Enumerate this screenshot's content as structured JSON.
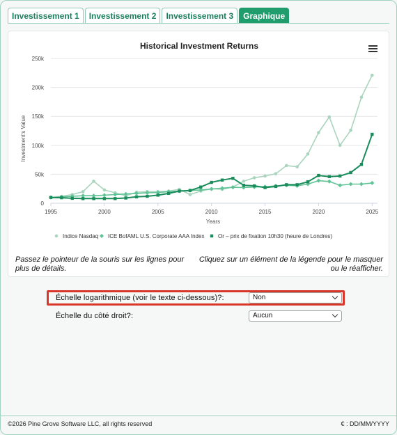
{
  "tabs": [
    {
      "label": "Investissement 1"
    },
    {
      "label": "Investissement 2"
    },
    {
      "label": "Investissement 3"
    },
    {
      "label": "Graphique"
    }
  ],
  "chart_data": {
    "type": "line",
    "title": "Historical Investment Returns",
    "xlabel": "Years",
    "ylabel": "Investment's Value",
    "x": [
      1995,
      1996,
      1997,
      1998,
      1999,
      2000,
      2001,
      2002,
      2003,
      2004,
      2005,
      2006,
      2007,
      2008,
      2009,
      2010,
      2011,
      2012,
      2013,
      2014,
      2015,
      2016,
      2017,
      2018,
      2019,
      2020,
      2021,
      2022,
      2023,
      2024,
      2025
    ],
    "xlim": [
      1995,
      2025.5
    ],
    "ylim": [
      0,
      250000
    ],
    "x_ticks": [
      1995,
      2000,
      2005,
      2010,
      2015,
      2020,
      2025
    ],
    "y_ticks": [
      0,
      50000,
      100000,
      150000,
      200000,
      250000
    ],
    "y_tick_labels": [
      "0",
      "50k",
      "100k",
      "150k",
      "200k",
      "250k"
    ],
    "grid": true,
    "legend_position": "bottom",
    "series": [
      {
        "name": "Indice Nasdaq",
        "color": "#a9d4bd",
        "marker": "circle",
        "values": [
          10000,
          12000,
          15000,
          20000,
          38000,
          23000,
          18000,
          13000,
          19000,
          20000,
          20000,
          21000,
          24000,
          15000,
          21000,
          25000,
          24000,
          28000,
          38000,
          44000,
          47000,
          51000,
          65000,
          63000,
          85000,
          122000,
          149000,
          100000,
          126000,
          183000,
          221000
        ]
      },
      {
        "name": "ICE BofAML U.S. Corporate AAA Index",
        "color": "#5fc396",
        "marker": "diamond",
        "values": [
          10000,
          11000,
          12000,
          13000,
          13000,
          14000,
          15000,
          16000,
          17000,
          18000,
          18500,
          20000,
          21000,
          22000,
          23000,
          24500,
          26000,
          27500,
          27000,
          28000,
          28500,
          30000,
          31000,
          30000,
          33000,
          39000,
          37500,
          31000,
          33000,
          33000,
          35000
        ]
      },
      {
        "name": "Or – prix de fixation 10h30 (heure de Londres)",
        "color": "#1a8c5b",
        "marker": "square",
        "values": [
          10000,
          9500,
          8500,
          8000,
          8000,
          8000,
          8000,
          9000,
          11000,
          12000,
          14000,
          17000,
          21000,
          22000,
          28000,
          36000,
          40000,
          43000,
          31000,
          30000,
          27000,
          29000,
          32000,
          32000,
          37000,
          48000,
          46000,
          47000,
          53000,
          67000,
          119000
        ]
      }
    ]
  },
  "hints": {
    "left": "Passez le pointeur de la souris sur les lignes pour plus de détails.",
    "right": "Cliquez sur un élément de la légende pour le masquer ou le réafficher."
  },
  "options": {
    "log_scale_label": "Échelle logarithmique (voir le texte ci-dessous)?:",
    "log_scale_value": "Non",
    "right_scale_label": "Échelle du côté droit?:",
    "right_scale_value": "Aucun"
  },
  "footer": {
    "copyright": "©2026 Pine Grove Software LLC, all rights reserved",
    "currency": "€ : DD/MM/YYYY"
  },
  "colors": {
    "accent": "#1f9d6c",
    "highlight": "#d8362b"
  }
}
